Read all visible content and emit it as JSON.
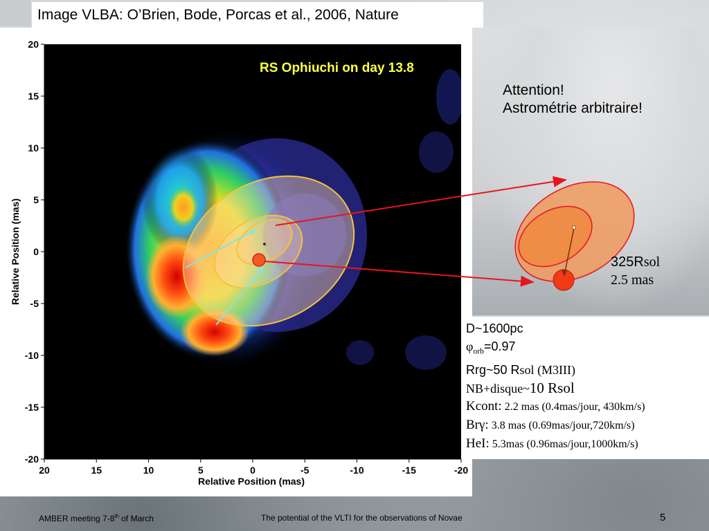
{
  "header": {
    "title": "Image VLBA: O’Brien, Bode, Porcas et al., 2006, Nature"
  },
  "plot": {
    "title": "RS Ophiuchi on day 13.8",
    "xlabel": "Relative Position (mas)",
    "ylabel": "Relative Position (mas)",
    "x_ticks": [
      "20",
      "15",
      "10",
      "5",
      "0",
      "-5",
      "-10",
      "-15",
      "-20"
    ],
    "y_ticks": [
      "20",
      "15",
      "10",
      "5",
      "0",
      "-5",
      "-10",
      "-15",
      "-20"
    ],
    "xlim": [
      20,
      -20
    ],
    "ylim": [
      -20,
      20
    ]
  },
  "note": {
    "line1": "Attention!",
    "line2": "Astrométrie arbitraire!"
  },
  "scale": {
    "radius_value": "325R",
    "radius_unit": "sol",
    "angular": "2.5 mas"
  },
  "params": {
    "distance": "D~1600pc",
    "phi_symbol": "φ",
    "phi_sub": "orb",
    "phi_value": "=0.97",
    "rrg_prefix": "Rrg~50 R",
    "rrg_unit": "sol",
    "rrg_type": " (M3III)",
    "nb_prefix": "NB+disque~",
    "nb_value": "10 Rsol",
    "kcont_label": "Kcont:",
    "kcont_value": " 2.2 mas (0.4mas/jour, 430km/s)",
    "brg_label": "Brγ:",
    "brg_value": " 3.8 mas (0.69mas/jour,720km/s)",
    "hei_label": "HeI:",
    "hei_value": " 5.3mas (0.96mas/jour,1000km/s)"
  },
  "footer": {
    "meeting_prefix": "AMBER meeting 7-8",
    "meeting_sup": "th",
    "meeting_suffix": " of March",
    "talk_title": "The potential of the VLTI for the observations of Novae",
    "page_number": "5"
  },
  "colors": {
    "title_yellow": "#ffff40",
    "ellipse_outline": "#f5c23a",
    "red_arrow": "#e8141c",
    "star_red": "#f25a22"
  }
}
